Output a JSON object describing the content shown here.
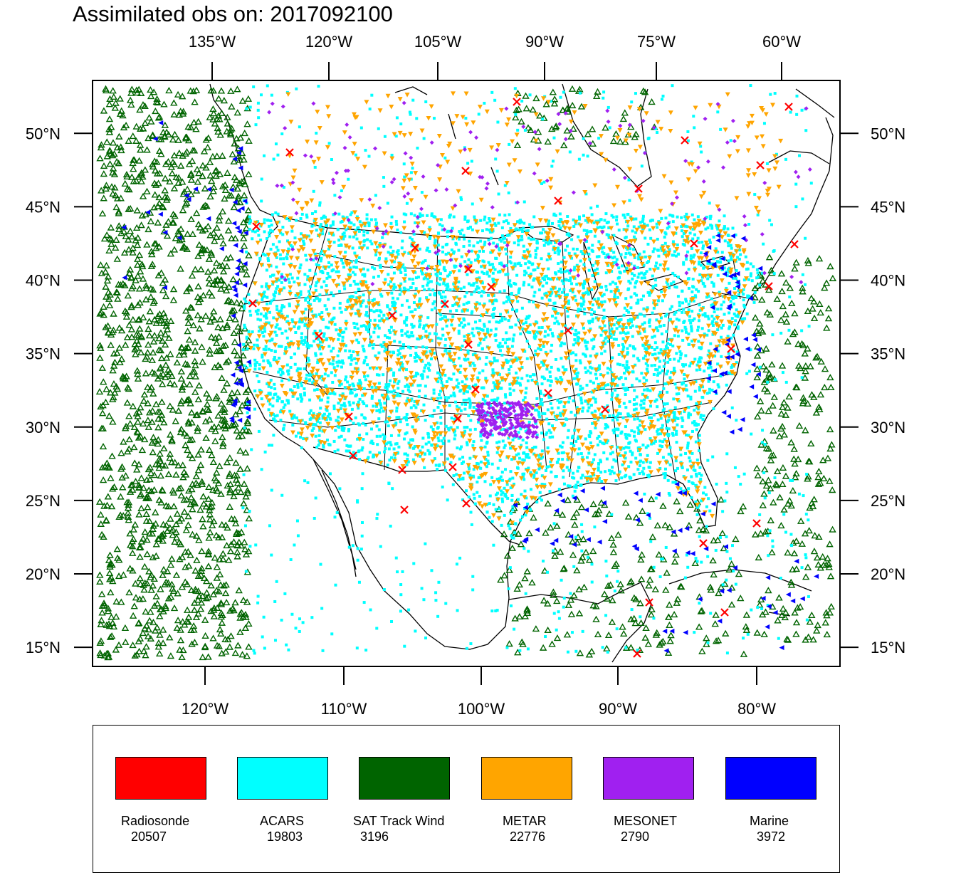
{
  "title": "Assimilated obs on: 2017092100",
  "map": {
    "top_lon_labels": [
      "135°W",
      "120°W",
      "105°W",
      "90°W",
      "75°W",
      "60°W"
    ],
    "bottom_lon_labels": [
      "120°W",
      "110°W",
      "100°W",
      "90°W",
      "80°W"
    ],
    "lat_labels": [
      "50°N",
      "45°N",
      "40°N",
      "35°N",
      "30°N",
      "25°N",
      "20°N",
      "15°N"
    ],
    "lat_values": [
      50,
      45,
      40,
      35,
      30,
      25,
      20,
      15
    ],
    "lat_range": [
      13.7,
      53.6
    ]
  },
  "legend": [
    {
      "name": "Radiosonde",
      "count": "20507",
      "color": "#ff0000",
      "marker": "x-mark"
    },
    {
      "name": "ACARS",
      "count": "19803",
      "color": "#00ffff",
      "marker": "square-dot"
    },
    {
      "name": "SAT Track Wind",
      "count": "3196",
      "color": "#006400",
      "marker": "triangle-outline"
    },
    {
      "name": "METAR",
      "count": "22776",
      "color": "#ffa500",
      "marker": "triangle-down"
    },
    {
      "name": "MESONET",
      "count": "2790",
      "color": "#a020f0",
      "marker": "diamond"
    },
    {
      "name": "Marine",
      "count": "3972",
      "color": "#0000ff",
      "marker": "triangle-left"
    }
  ]
}
